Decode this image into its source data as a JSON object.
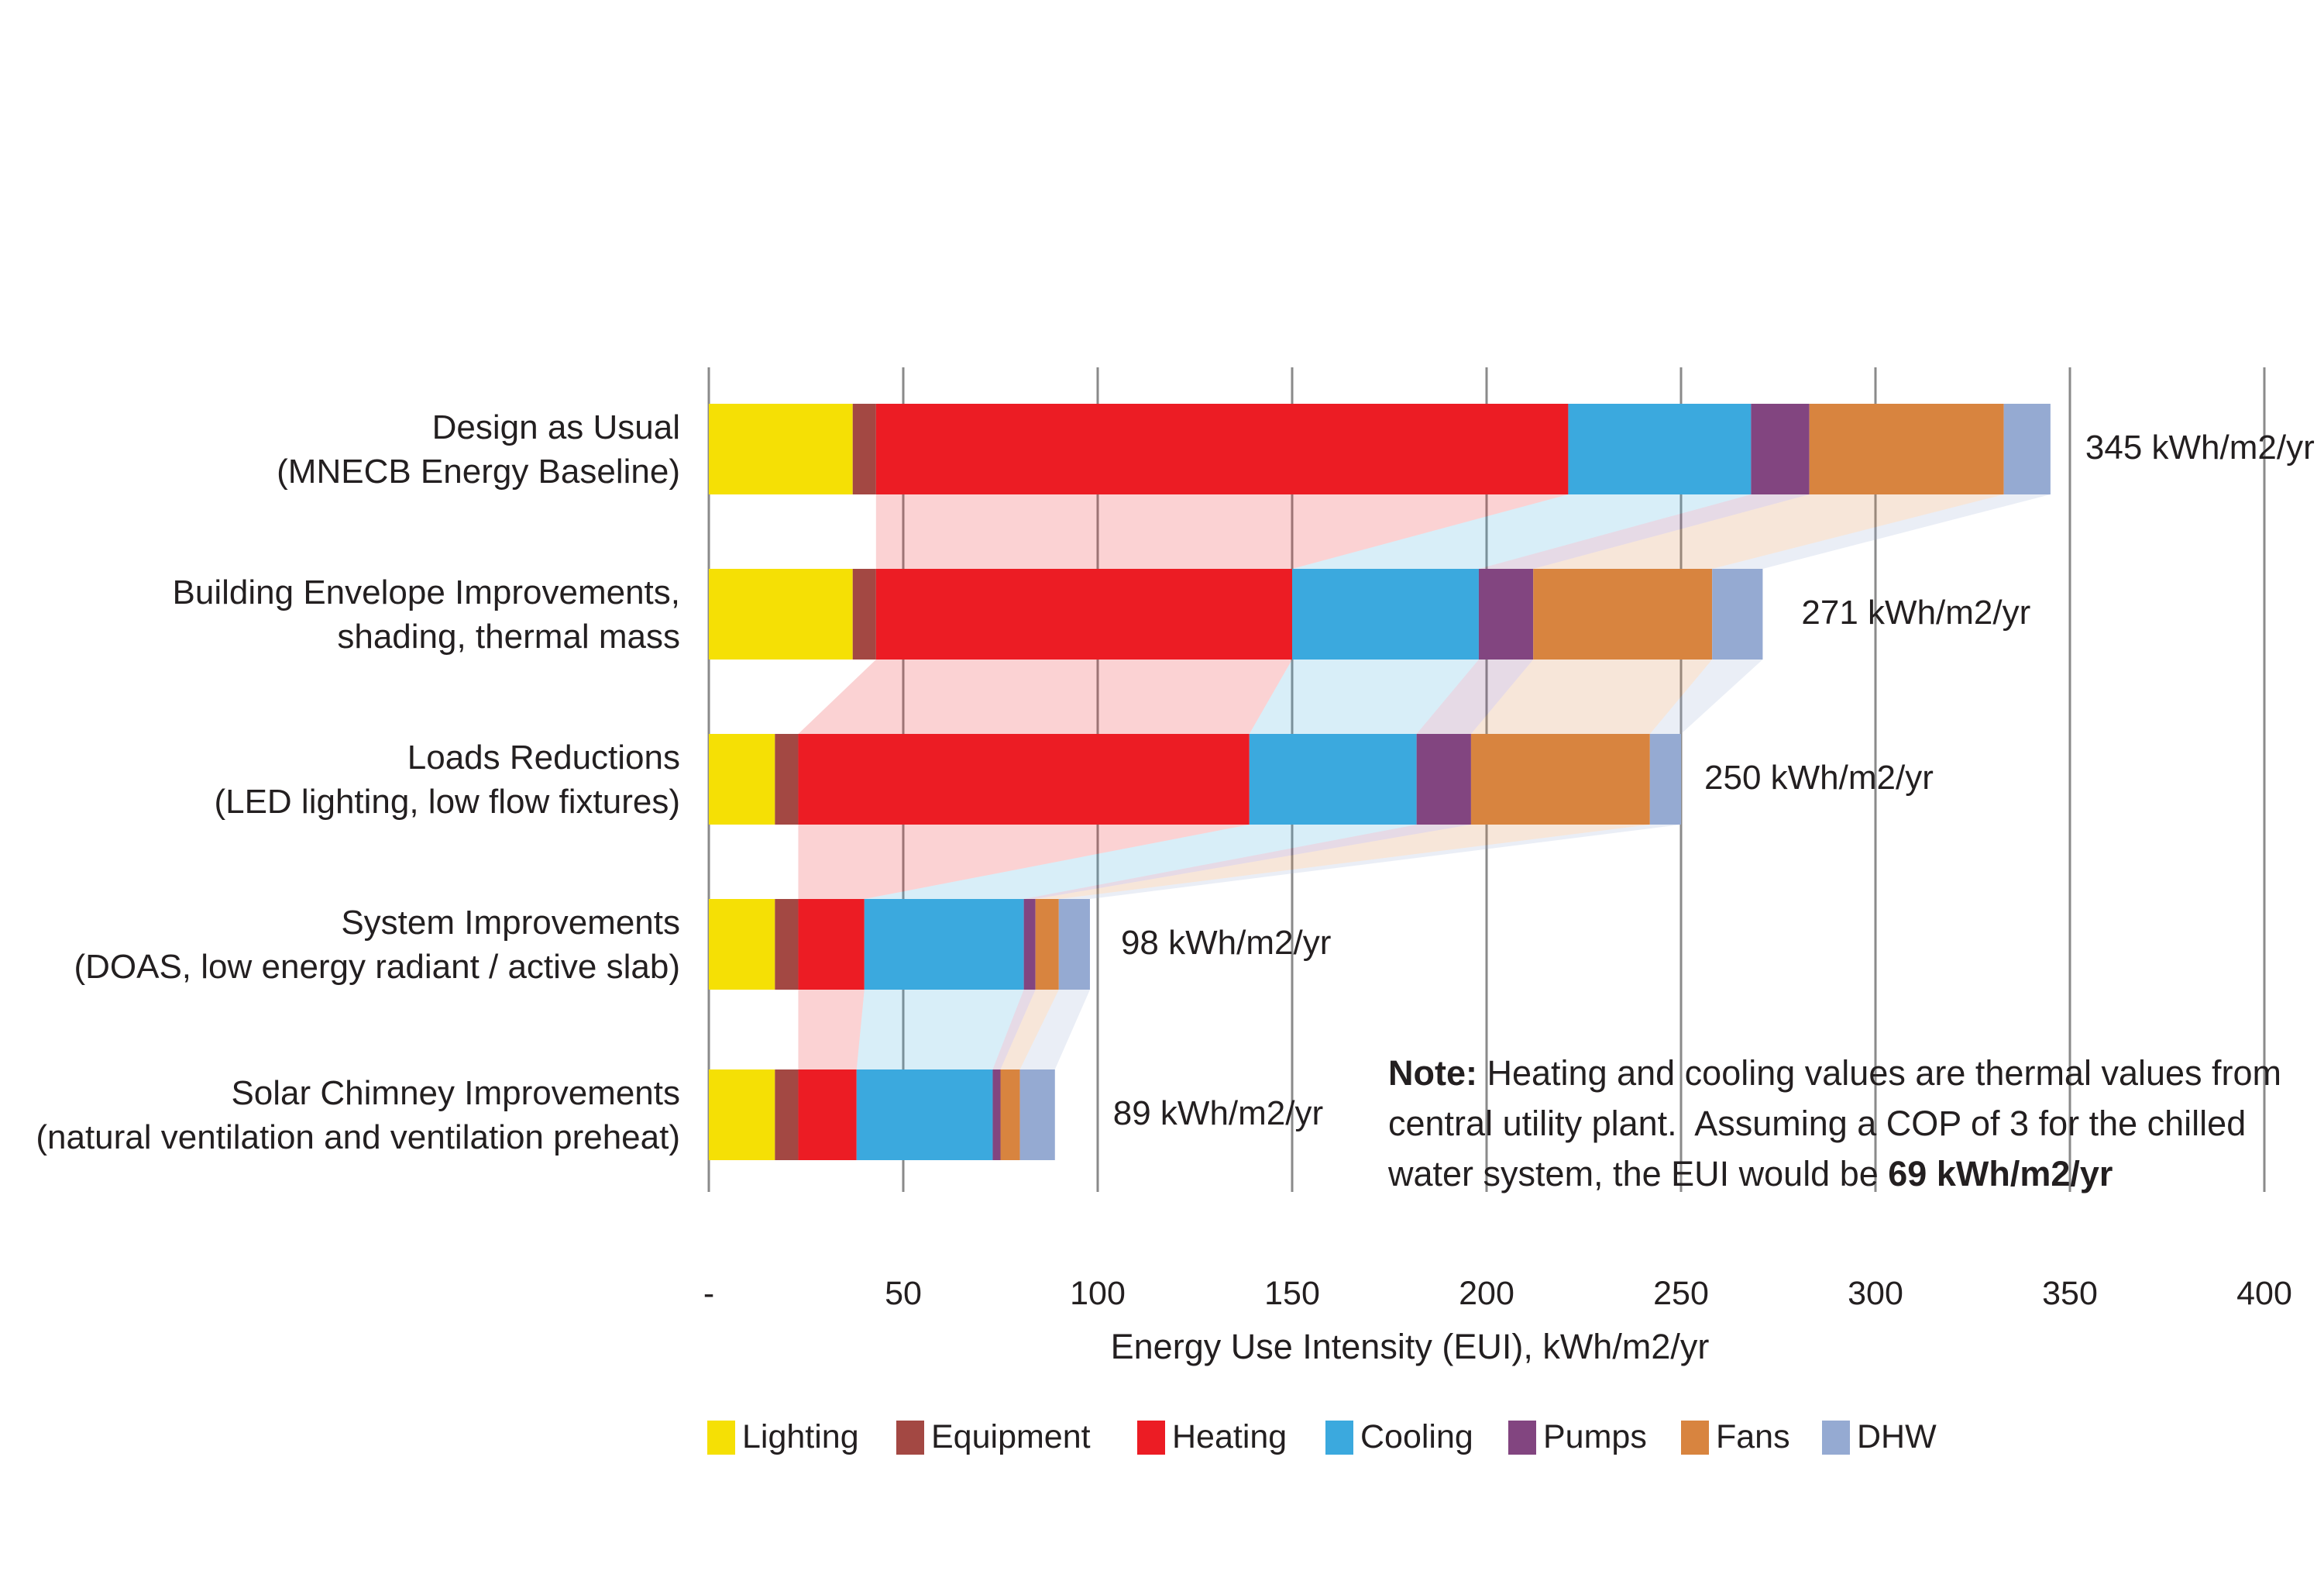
{
  "axis": {
    "title": "Energy Use Intensity (EUI), kWh/m2/yr",
    "ticks": [
      "-",
      "50",
      "100",
      "150",
      "200",
      "250",
      "300",
      "350",
      "400"
    ],
    "tick_values": [
      0,
      50,
      100,
      150,
      200,
      250,
      300,
      350,
      400
    ]
  },
  "legend": {
    "entries": [
      {
        "label": "Lighting",
        "color": "#F5E005"
      },
      {
        "label": "Equipment",
        "color": "#A34843"
      },
      {
        "label": "Heating",
        "color": "#EC1C24"
      },
      {
        "label": "Cooling",
        "color": "#3BA9DE"
      },
      {
        "label": "Pumps",
        "color": "#824580"
      },
      {
        "label": "Fans",
        "color": "#D8843F"
      },
      {
        "label": "DHW",
        "color": "#95AAD2"
      }
    ]
  },
  "note": {
    "line1_bold": "Note:",
    "line1_rest": " Heating and cooling values are thermal values from",
    "line2": "central utility plant.  Assuming a COP of 3 for the chilled",
    "line3_rest": "water system, the EUI would be ",
    "line3_bold": "69 kWh/m2/yr"
  },
  "chart_data": {
    "type": "bar",
    "orientation": "horizontal-stacked",
    "title": "",
    "xlabel": "Energy Use Intensity (EUI), kWh/m2/yr",
    "ylabel": "",
    "xlim": [
      0,
      400
    ],
    "gridline_step": 50,
    "grid": true,
    "legend_position": "bottom",
    "categories": [
      {
        "line1": "Design as Usual",
        "line2": "(MNECB Energy Baseline)"
      },
      {
        "line1": "Building Envelope Improvements,",
        "line2": "shading, thermal mass"
      },
      {
        "line1": "Loads Reductions",
        "line2": "(LED lighting, low flow fixtures)"
      },
      {
        "line1": "System Improvements",
        "line2": "(DOAS, low energy radiant / active slab)"
      },
      {
        "line1": "Solar Chimney Improvements",
        "line2": "(natural ventilation and ventilation preheat)"
      }
    ],
    "series": [
      {
        "name": "Lighting",
        "color": "#F5E005",
        "values": [
          37,
          37,
          17,
          17,
          17
        ]
      },
      {
        "name": "Equipment",
        "color": "#A34843",
        "values": [
          6,
          6,
          6,
          6,
          6
        ]
      },
      {
        "name": "Heating",
        "color": "#EC1C24",
        "values": [
          178,
          107,
          116,
          17,
          15
        ]
      },
      {
        "name": "Cooling",
        "color": "#3BA9DE",
        "values": [
          47,
          48,
          43,
          41,
          35
        ]
      },
      {
        "name": "Pumps",
        "color": "#824580",
        "values": [
          15,
          14,
          14,
          3,
          2
        ]
      },
      {
        "name": "Fans",
        "color": "#D8843F",
        "values": [
          50,
          46,
          46,
          6,
          5
        ]
      },
      {
        "name": "DHW",
        "color": "#95AAD2",
        "values": [
          12,
          13,
          8,
          8,
          9
        ]
      }
    ],
    "totals": [
      345,
      271,
      250,
      98,
      89
    ],
    "total_labels": [
      "345 kWh/m2/yr",
      "271 kWh/m2/yr",
      "250 kWh/m2/yr",
      "98 kWh/m2/yr",
      "89 kWh/m2/yr"
    ],
    "gridline_color": "#8A8A8A",
    "connector_series": [
      "Heating",
      "Cooling",
      "Pumps",
      "Fans",
      "DHW"
    ],
    "connector_opacity": 0.2
  }
}
